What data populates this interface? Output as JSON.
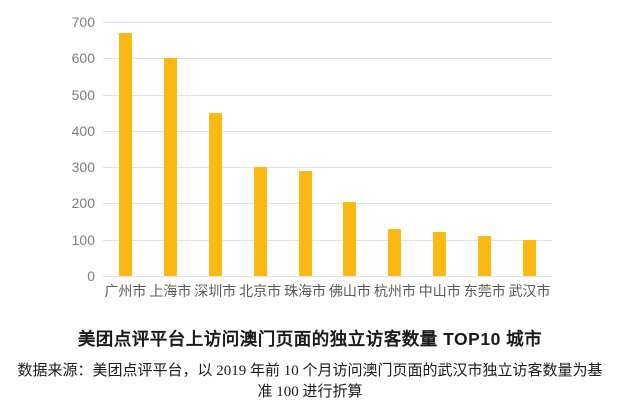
{
  "chart_data": {
    "type": "bar",
    "title": "美团点评平台上访问澳门页面的独立访客数量 TOP10 城市",
    "source_note_line1": "数据来源：美团点评平台，以 2019 年前 10 个月访问澳门页面的武汉市独立访客数量为基",
    "source_note_line2": "准 100 进行折算",
    "categories": [
      "广州市",
      "上海市",
      "深圳市",
      "北京市",
      "珠海市",
      "佛山市",
      "杭州市",
      "中山市",
      "东莞市",
      "武汉市"
    ],
    "values": [
      670,
      600,
      450,
      300,
      290,
      205,
      130,
      120,
      110,
      100
    ],
    "xlabel": "",
    "ylabel": "",
    "ylim": [
      0,
      700
    ],
    "ytick_interval": 100,
    "ytick_labels": [
      "0",
      "100",
      "200",
      "300",
      "400",
      "500",
      "600",
      "700"
    ],
    "grid": true,
    "legend": false,
    "colors": {
      "bar": "#FDB913",
      "gridline": "#E2E2E2",
      "y_tick_label": "#7F7F7F",
      "x_tick_label": "#595959",
      "title": "#1A1A1A",
      "note": "#1A1A1A",
      "background": "#FFFFFF"
    }
  }
}
